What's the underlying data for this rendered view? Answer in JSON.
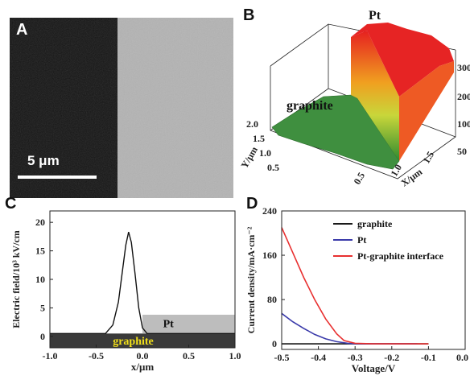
{
  "figure": {
    "panels": [
      {
        "label": "A",
        "scale_bar": "5 μm"
      },
      {
        "label": "B",
        "surface_labels": [
          "graphite",
          "Pt"
        ]
      },
      {
        "label": "C"
      },
      {
        "label": "D"
      }
    ]
  },
  "chart_data": [
    {
      "panel": "B",
      "type": "surface3d",
      "x_axis": {
        "label": "X/μm",
        "ticks": [
          "0.5",
          "1.0",
          "1.5"
        ]
      },
      "y_axis": {
        "label": "Y/μm",
        "ticks": [
          "0.5",
          "1.0",
          "1.5",
          "2.0"
        ]
      },
      "z_axis": {
        "ticks": [
          "50",
          "100",
          "200",
          "300"
        ]
      },
      "regions": [
        {
          "name": "graphite",
          "height": 50
        },
        {
          "name": "Pt",
          "height": 320
        }
      ]
    },
    {
      "panel": "C",
      "type": "line",
      "xlabel": "x/μm",
      "ylabel": "Electric field/10³ kV/cm",
      "xlim": [
        -1.0,
        1.0
      ],
      "ylim": [
        -2,
        22
      ],
      "xticks": [
        "-1.0",
        "-0.5",
        "0.0",
        "0.5",
        "1.0"
      ],
      "yticks": [
        "0",
        "5",
        "10",
        "15",
        "20"
      ],
      "regions": [
        {
          "name": "graphite",
          "label": "graphite"
        },
        {
          "name": "Pt",
          "label": "Pt"
        }
      ],
      "series": [
        {
          "x": [
            -1.0,
            -0.4,
            -0.32,
            -0.26,
            -0.22,
            -0.18,
            -0.15,
            -0.12,
            -0.08,
            -0.04,
            0.0,
            0.05,
            1.0
          ],
          "y": [
            0.5,
            0.5,
            2.0,
            6.0,
            11.0,
            16.0,
            18.3,
            16.5,
            11.0,
            5.0,
            1.5,
            0.5,
            0.5
          ]
        }
      ]
    },
    {
      "panel": "D",
      "type": "line",
      "xlabel": "Voltage/V",
      "ylabel": "Current density/mA·cm⁻²",
      "xlim": [
        -0.5,
        0.0
      ],
      "ylim": [
        -10,
        240
      ],
      "xticks": [
        "-0.5",
        "-0.4",
        "-0.3",
        "-0.2",
        "-0.1",
        "0.0"
      ],
      "yticks": [
        "0",
        "80",
        "160",
        "240"
      ],
      "series": [
        {
          "name": "graphite",
          "color": "#1a1a1a",
          "x": [
            -0.5,
            -0.45,
            -0.4,
            -0.35,
            -0.3,
            -0.25,
            -0.2,
            -0.15,
            -0.1
          ],
          "y": [
            0,
            0,
            0,
            0,
            0,
            0,
            0,
            0,
            0
          ]
        },
        {
          "name": "Pt",
          "color": "#3a3aaa",
          "x": [
            -0.5,
            -0.47,
            -0.44,
            -0.41,
            -0.38,
            -0.35,
            -0.32,
            -0.3,
            -0.25,
            -0.2,
            -0.13
          ],
          "y": [
            55,
            40,
            28,
            17,
            9,
            4,
            1,
            0,
            0,
            0,
            0
          ]
        },
        {
          "name": "Pt-graphite interface",
          "color": "#e83030",
          "x": [
            -0.5,
            -0.47,
            -0.44,
            -0.41,
            -0.38,
            -0.35,
            -0.33,
            -0.3,
            -0.25,
            -0.2,
            -0.1
          ],
          "y": [
            210,
            165,
            120,
            80,
            45,
            18,
            6,
            1,
            0,
            0,
            0
          ]
        }
      ],
      "legend": "top-right"
    }
  ]
}
